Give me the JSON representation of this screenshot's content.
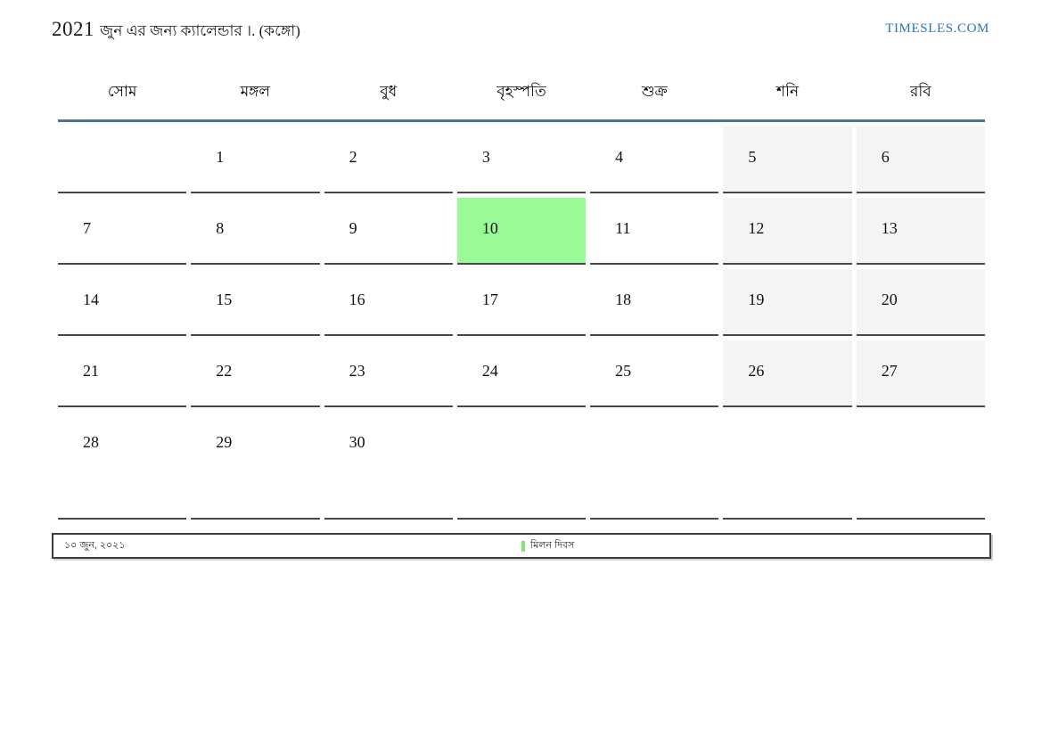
{
  "header": {
    "year": "2021",
    "title_rest": "জুন এর জন্য ক্যালেন্ডার ।. (কঙ্গো)",
    "site": "TIMESLES.COM"
  },
  "weekdays": [
    "সোম",
    "মঙ্গল",
    "বুধ",
    "বৃহস্পতি",
    "শুক্র",
    "শনি",
    "রবি"
  ],
  "grid": {
    "rows": [
      {
        "cells": [
          "",
          "1",
          "2",
          "3",
          "4",
          "5",
          "6"
        ]
      },
      {
        "cells": [
          "7",
          "8",
          "9",
          "10",
          "11",
          "12",
          "13"
        ]
      },
      {
        "cells": [
          "14",
          "15",
          "16",
          "17",
          "18",
          "19",
          "20"
        ]
      },
      {
        "cells": [
          "21",
          "22",
          "23",
          "24",
          "25",
          "26",
          "27"
        ]
      },
      {
        "cells": [
          "28",
          "29",
          "30",
          "",
          "",
          "",
          ""
        ]
      }
    ],
    "highlighted_day": "10",
    "weekend_columns": [
      "শনি",
      "রবি"
    ]
  },
  "legend": {
    "date": "১০ জুন, ২০২১",
    "holiday_label": "মিলন দিবস"
  },
  "colors": {
    "header_rule_blue": "#50719f",
    "link_blue": "#2e74b5",
    "weekend_bg": "#f4f4f4",
    "highlight_green": "#98fb98",
    "legend_marker_green": "#85e572",
    "cell_border": "#4a4a4a"
  }
}
